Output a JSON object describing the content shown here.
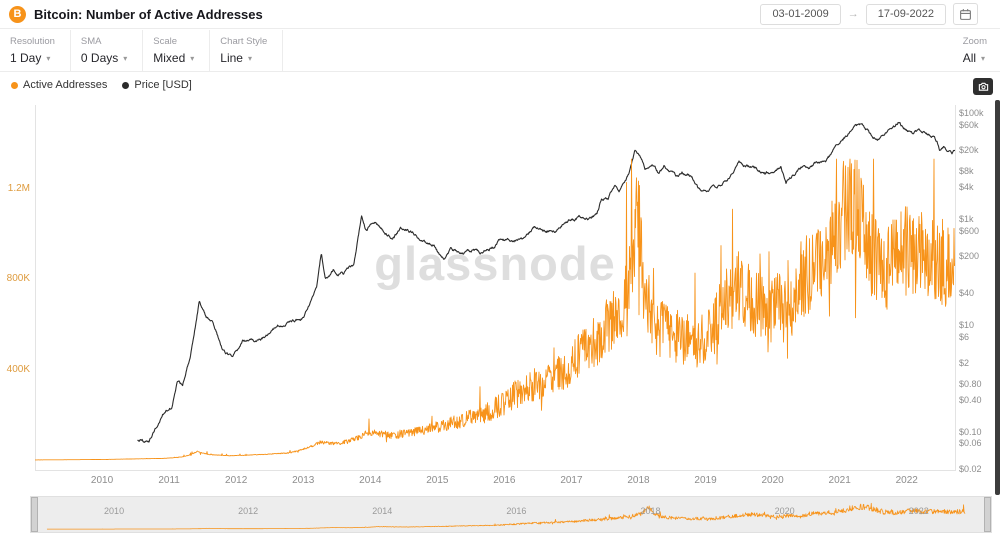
{
  "header": {
    "title": "Bitcoin: Number of Active Addresses",
    "date_from": "03-01-2009",
    "date_to": "17-09-2022"
  },
  "icons": {
    "bitcoin_glyph": "B",
    "date_arrow": "→",
    "chevron_down": "▾"
  },
  "toolbar": {
    "controls": [
      {
        "label": "Resolution",
        "value": "1 Day"
      },
      {
        "label": "SMA",
        "value": "0 Days"
      },
      {
        "label": "Scale",
        "value": "Mixed"
      },
      {
        "label": "Chart Style",
        "value": "Line"
      }
    ],
    "zoom": {
      "label": "Zoom",
      "value": "All"
    }
  },
  "legend": [
    {
      "label": "Active Addresses",
      "color": "#f7931a"
    },
    {
      "label": "Price [USD]",
      "color": "#2b2b2b"
    }
  ],
  "watermark": "glassnode",
  "chart_data": {
    "type": "line",
    "title": "Bitcoin: Number of Active Addresses",
    "x_range": [
      2009.0,
      2022.72
    ],
    "x_ticks": [
      2010,
      2011,
      2012,
      2013,
      2014,
      2015,
      2016,
      2017,
      2018,
      2019,
      2020,
      2021,
      2022
    ],
    "left_axis": {
      "name": "Active Addresses",
      "scale": "linear",
      "color": "#de9b3e",
      "ticks": [
        {
          "value": 400000,
          "label": "400K"
        },
        {
          "value": 800000,
          "label": "800K"
        },
        {
          "value": 1200000,
          "label": "1.2M"
        }
      ]
    },
    "right_axis": {
      "name": "Price [USD]",
      "scale": "log",
      "color": "#8d8d8d",
      "ticks": [
        {
          "value": 100000,
          "label": "$100k"
        },
        {
          "value": 60000,
          "label": "$60k"
        },
        {
          "value": 20000,
          "label": "$20k"
        },
        {
          "value": 8000,
          "label": "$8k"
        },
        {
          "value": 4000,
          "label": "$4k"
        },
        {
          "value": 1000,
          "label": "$1k"
        },
        {
          "value": 600,
          "label": "$600"
        },
        {
          "value": 200,
          "label": "$200"
        },
        {
          "value": 40,
          "label": "$40"
        },
        {
          "value": 10,
          "label": "$10"
        },
        {
          "value": 6,
          "label": "$6"
        },
        {
          "value": 2,
          "label": "$2"
        },
        {
          "value": 0.8,
          "label": "$0.80"
        },
        {
          "value": 0.4,
          "label": "$0.40"
        },
        {
          "value": 0.1,
          "label": "$0.10"
        },
        {
          "value": 0.06,
          "label": "$0.06"
        },
        {
          "value": 0.02,
          "label": "$0.02"
        }
      ]
    },
    "series": [
      {
        "name": "Active Addresses",
        "axis": "left",
        "color": "#f7931a",
        "noise": "spiky",
        "points": [
          [
            2009.0,
            600
          ],
          [
            2009.5,
            1200
          ],
          [
            2010.0,
            2500
          ],
          [
            2010.5,
            5000
          ],
          [
            2010.9,
            7000
          ],
          [
            2011.2,
            14000
          ],
          [
            2011.42,
            38000
          ],
          [
            2011.6,
            24000
          ],
          [
            2011.9,
            19000
          ],
          [
            2012.2,
            22000
          ],
          [
            2012.5,
            26000
          ],
          [
            2012.8,
            32000
          ],
          [
            2013.0,
            48000
          ],
          [
            2013.25,
            78000
          ],
          [
            2013.5,
            72000
          ],
          [
            2013.8,
            95000
          ],
          [
            2013.95,
            125000
          ],
          [
            2014.1,
            118000
          ],
          [
            2014.35,
            108000
          ],
          [
            2014.6,
            122000
          ],
          [
            2014.9,
            138000
          ],
          [
            2015.1,
            155000
          ],
          [
            2015.4,
            178000
          ],
          [
            2015.7,
            205000
          ],
          [
            2015.95,
            245000
          ],
          [
            2016.15,
            285000
          ],
          [
            2016.4,
            330000
          ],
          [
            2016.65,
            355000
          ],
          [
            2016.9,
            400000
          ],
          [
            2017.1,
            455000
          ],
          [
            2017.3,
            510000
          ],
          [
            2017.5,
            565000
          ],
          [
            2017.7,
            640000
          ],
          [
            2017.9,
            820000
          ],
          [
            2017.98,
            1150000
          ],
          [
            2018.08,
            760000
          ],
          [
            2018.25,
            600000
          ],
          [
            2018.45,
            560000
          ],
          [
            2018.65,
            545000
          ],
          [
            2018.9,
            510000
          ],
          [
            2019.1,
            595000
          ],
          [
            2019.3,
            690000
          ],
          [
            2019.5,
            765000
          ],
          [
            2019.7,
            715000
          ],
          [
            2019.9,
            645000
          ],
          [
            2020.1,
            695000
          ],
          [
            2020.22,
            640000
          ],
          [
            2020.4,
            790000
          ],
          [
            2020.6,
            845000
          ],
          [
            2020.8,
            875000
          ],
          [
            2021.0,
            1060000
          ],
          [
            2021.12,
            1140000
          ],
          [
            2021.3,
            1090000
          ],
          [
            2021.5,
            890000
          ],
          [
            2021.7,
            845000
          ],
          [
            2021.9,
            945000
          ],
          [
            2022.1,
            895000
          ],
          [
            2022.3,
            925000
          ],
          [
            2022.5,
            875000
          ],
          [
            2022.72,
            905000
          ]
        ]
      },
      {
        "name": "Price [USD]",
        "axis": "right",
        "color": "#2b2b2b",
        "noise": "walk",
        "points": [
          [
            2010.53,
            0.07
          ],
          [
            2010.7,
            0.062
          ],
          [
            2010.9,
            0.21
          ],
          [
            2011.05,
            0.32
          ],
          [
            2011.12,
            0.95
          ],
          [
            2011.2,
            0.75
          ],
          [
            2011.32,
            3
          ],
          [
            2011.45,
            30
          ],
          [
            2011.55,
            15
          ],
          [
            2011.65,
            11
          ],
          [
            2011.8,
            3.4
          ],
          [
            2011.95,
            2.3
          ],
          [
            2012.1,
            5.2
          ],
          [
            2012.3,
            4.9
          ],
          [
            2012.5,
            6.7
          ],
          [
            2012.62,
            11
          ],
          [
            2012.7,
            9.5
          ],
          [
            2012.9,
            12.5
          ],
          [
            2013.0,
            13.5
          ],
          [
            2013.12,
            27
          ],
          [
            2013.2,
            47
          ],
          [
            2013.27,
            230
          ],
          [
            2013.33,
            70
          ],
          [
            2013.45,
            115
          ],
          [
            2013.6,
            95
          ],
          [
            2013.75,
            135
          ],
          [
            2013.87,
            1150
          ],
          [
            2013.93,
            650
          ],
          [
            2014.0,
            760
          ],
          [
            2014.08,
            850
          ],
          [
            2014.18,
            620
          ],
          [
            2014.3,
            450
          ],
          [
            2014.45,
            650
          ],
          [
            2014.6,
            590
          ],
          [
            2014.78,
            380
          ],
          [
            2014.95,
            330
          ],
          [
            2015.04,
            200
          ],
          [
            2015.1,
            172
          ],
          [
            2015.2,
            255
          ],
          [
            2015.35,
            232
          ],
          [
            2015.5,
            262
          ],
          [
            2015.65,
            230
          ],
          [
            2015.85,
            310
          ],
          [
            2015.95,
            430
          ],
          [
            2016.1,
            375
          ],
          [
            2016.3,
            425
          ],
          [
            2016.45,
            680
          ],
          [
            2016.58,
            600
          ],
          [
            2016.78,
            640
          ],
          [
            2016.95,
            960
          ],
          [
            2017.05,
            1050
          ],
          [
            2017.18,
            1180
          ],
          [
            2017.25,
            960
          ],
          [
            2017.38,
            1350
          ],
          [
            2017.45,
            2550
          ],
          [
            2017.55,
            2450
          ],
          [
            2017.65,
            4300
          ],
          [
            2017.72,
            3600
          ],
          [
            2017.85,
            7200
          ],
          [
            2017.95,
            19200
          ],
          [
            2018.02,
            14000
          ],
          [
            2018.1,
            8300
          ],
          [
            2018.2,
            11200
          ],
          [
            2018.3,
            6900
          ],
          [
            2018.38,
            9300
          ],
          [
            2018.5,
            7500
          ],
          [
            2018.55,
            6300
          ],
          [
            2018.65,
            7400
          ],
          [
            2018.8,
            6400
          ],
          [
            2018.88,
            4000
          ],
          [
            2018.95,
            3250
          ],
          [
            2019.05,
            3550
          ],
          [
            2019.2,
            4000
          ],
          [
            2019.33,
            5400
          ],
          [
            2019.42,
            8600
          ],
          [
            2019.5,
            12800
          ],
          [
            2019.58,
            10600
          ],
          [
            2019.7,
            10300
          ],
          [
            2019.85,
            8400
          ],
          [
            2019.95,
            7200
          ],
          [
            2020.05,
            8200
          ],
          [
            2020.12,
            9800
          ],
          [
            2020.2,
            5000
          ],
          [
            2020.3,
            6800
          ],
          [
            2020.42,
            9400
          ],
          [
            2020.55,
            9200
          ],
          [
            2020.65,
            11600
          ],
          [
            2020.8,
            13000
          ],
          [
            2020.88,
            16500
          ],
          [
            2020.97,
            26000
          ],
          [
            2021.02,
            33000
          ],
          [
            2021.1,
            36000
          ],
          [
            2021.17,
            49000
          ],
          [
            2021.25,
            58000
          ],
          [
            2021.32,
            63500
          ],
          [
            2021.4,
            50000
          ],
          [
            2021.47,
            36500
          ],
          [
            2021.55,
            33500
          ],
          [
            2021.63,
            41000
          ],
          [
            2021.7,
            47500
          ],
          [
            2021.78,
            49000
          ],
          [
            2021.85,
            61500
          ],
          [
            2021.88,
            67500
          ],
          [
            2021.95,
            49500
          ],
          [
            2022.03,
            43500
          ],
          [
            2022.1,
            38500
          ],
          [
            2022.17,
            44500
          ],
          [
            2022.25,
            46500
          ],
          [
            2022.32,
            40000
          ],
          [
            2022.4,
            36000
          ],
          [
            2022.45,
            29500
          ],
          [
            2022.5,
            20000
          ],
          [
            2022.55,
            23500
          ],
          [
            2022.62,
            20500
          ],
          [
            2022.68,
            19800
          ],
          [
            2022.72,
            19600
          ]
        ]
      }
    ]
  },
  "navigator": {
    "years": [
      "2010",
      "2012",
      "2014",
      "2016",
      "2018",
      "2020",
      "2022"
    ]
  }
}
